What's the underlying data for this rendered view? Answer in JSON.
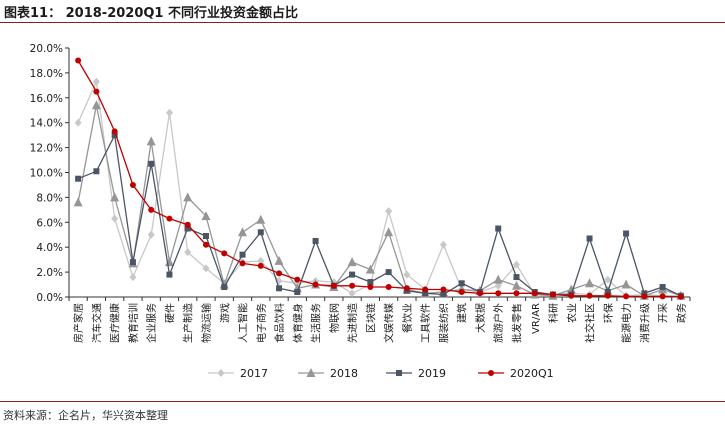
{
  "header": {
    "title": "图表11：  2018-2020Q1 不同行业投资金额占比"
  },
  "footer": {
    "source": "资料来源：企名片，华兴资本整理"
  },
  "chart_data": {
    "type": "line",
    "title": "",
    "xlabel": "",
    "ylabel": "",
    "ylim": [
      0,
      20
    ],
    "yticks": [
      "0.0%",
      "2.0%",
      "4.0%",
      "6.0%",
      "8.0%",
      "10.0%",
      "12.0%",
      "14.0%",
      "16.0%",
      "18.0%",
      "20.0%"
    ],
    "legend_position": "bottom",
    "categories": [
      "房产家居",
      "汽车交通",
      "医疗健康",
      "教育培训",
      "企业服务",
      "硬件",
      "生产制造",
      "物流运输",
      "游戏",
      "人工智能",
      "电子商务",
      "食品饮料",
      "体育健身",
      "生活服务",
      "物联网",
      "先进制造",
      "区块链",
      "文娱传媒",
      "餐饮业",
      "工具软件",
      "服装纺织",
      "建筑",
      "大数据",
      "旅游户外",
      "批发零售",
      "VR/AR",
      "科研",
      "农业",
      "社交社区",
      "环保",
      "能源电力",
      "消费升级",
      "开采",
      "政务"
    ],
    "series": [
      {
        "name": "2017",
        "color": "#c8c8c8",
        "marker": "diamond",
        "values": [
          14.0,
          17.3,
          6.3,
          1.6,
          5.0,
          14.8,
          3.6,
          2.3,
          1.1,
          2.8,
          2.9,
          1.3,
          1.1,
          1.3,
          1.2,
          0.3,
          1.0,
          6.9,
          1.8,
          0.6,
          4.2,
          0.6,
          0.4,
          0.9,
          2.6,
          0.2,
          0.2,
          0.3,
          0.2,
          1.4,
          0.1,
          0.2,
          0.1,
          0.1
        ]
      },
      {
        "name": "2018",
        "color": "#969696",
        "marker": "triangle",
        "values": [
          7.6,
          15.4,
          8.0,
          2.7,
          12.5,
          2.8,
          8.0,
          6.5,
          1.0,
          5.2,
          6.2,
          2.9,
          0.7,
          1.0,
          0.8,
          2.8,
          2.2,
          5.2,
          0.6,
          0.3,
          0.4,
          0.6,
          0.5,
          1.4,
          0.9,
          0.2,
          0.1,
          0.6,
          1.1,
          0.5,
          1.0,
          0.1,
          0.6,
          0.1
        ]
      },
      {
        "name": "2019",
        "color": "#4a5566",
        "marker": "square",
        "values": [
          9.5,
          10.1,
          13.0,
          2.8,
          10.7,
          1.8,
          5.5,
          4.9,
          0.8,
          3.4,
          5.2,
          0.7,
          0.4,
          4.5,
          0.9,
          1.8,
          1.2,
          2.0,
          0.5,
          0.3,
          0.2,
          1.1,
          0.4,
          5.5,
          1.6,
          0.4,
          0.2,
          0.2,
          4.7,
          0.4,
          5.1,
          0.3,
          0.8,
          0.1
        ]
      },
      {
        "name": "2020Q1",
        "color": "#c00000",
        "marker": "circle",
        "values": [
          19.0,
          16.5,
          13.3,
          9.0,
          7.0,
          6.3,
          5.8,
          4.2,
          3.5,
          2.7,
          2.5,
          1.9,
          1.4,
          1.0,
          0.9,
          0.9,
          0.8,
          0.8,
          0.7,
          0.6,
          0.6,
          0.4,
          0.3,
          0.3,
          0.3,
          0.3,
          0.2,
          0.1,
          0.1,
          0.1,
          0.05,
          0.05,
          0.05,
          0.02
        ]
      }
    ]
  }
}
